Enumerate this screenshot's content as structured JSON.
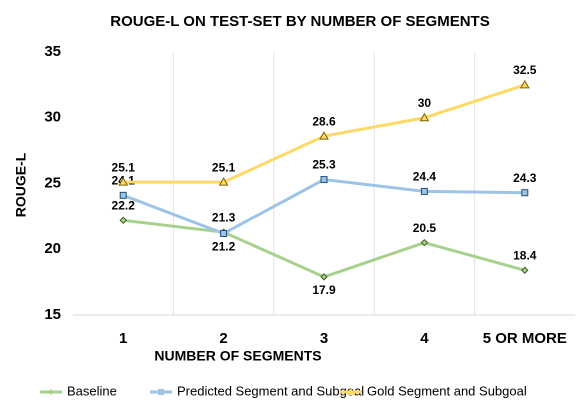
{
  "chart_data": {
    "type": "line",
    "title": "ROUGE-L ON TEST-SET BY NUMBER OF SEGMENTS",
    "x_label": "NUMBER OF SEGMENTS",
    "y_label": "ROUGE-L",
    "categories": [
      "1",
      "2",
      "3",
      "4",
      "5 OR MORE"
    ],
    "series": [
      {
        "name": "Baseline",
        "color": "#a9d18e",
        "values": [
          22.2,
          21.3,
          17.9,
          20.5,
          18.4
        ]
      },
      {
        "name": "Predicted Segment and Subgoal",
        "color": "#9dc3e6",
        "values": [
          24.1,
          21.2,
          25.3,
          24.4,
          24.3
        ]
      },
      {
        "name": "Gold Segment and Subgoal",
        "color": "#ffd966",
        "values": [
          25.1,
          25.1,
          28.6,
          30,
          32.5
        ]
      }
    ],
    "ylim": [
      15,
      35
    ],
    "yticks": [
      15,
      20,
      25,
      30,
      35
    ],
    "grid": true,
    "legend": "bottom"
  }
}
